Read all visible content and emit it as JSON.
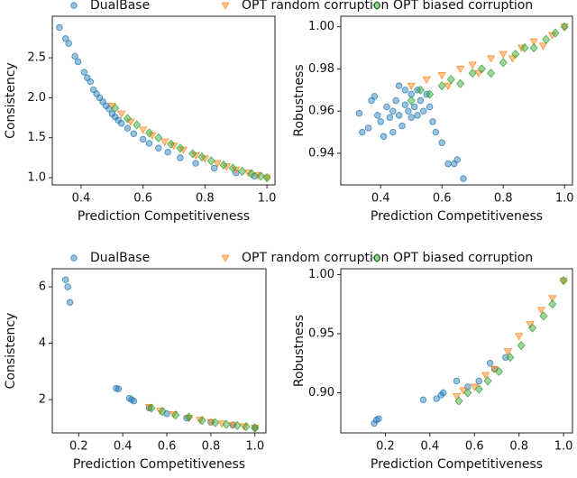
{
  "chart_data": [
    {
      "type": "scatter",
      "xlabel": "Prediction Competitiveness",
      "ylabel": "Consistency",
      "xlim": [
        0.307,
        1.026
      ],
      "ylim": [
        0.91,
        3.02
      ],
      "xticks": [
        0.4,
        0.6,
        0.8,
        {
          "value": 1.0,
          "label": "1.0"
        }
      ],
      "yticks": [
        {
          "value": 1.0,
          "label": "1.0"
        },
        1.5,
        {
          "value": 2.0,
          "label": "2.0"
        },
        2.5
      ],
      "series": [
        {
          "name": "DualBase",
          "color": "#1f77b4",
          "marker": "circle",
          "x": [
            0.33,
            0.35,
            0.36,
            0.38,
            0.39,
            0.41,
            0.42,
            0.43,
            0.44,
            0.45,
            0.46,
            0.47,
            0.48,
            0.49,
            0.5,
            0.51,
            0.52,
            0.53,
            0.55,
            0.57,
            0.6,
            0.62,
            0.65,
            0.68,
            0.72,
            0.77,
            0.83,
            0.9,
            0.96
          ],
          "values": [
            2.88,
            2.74,
            2.68,
            2.52,
            2.45,
            2.32,
            2.25,
            2.2,
            2.1,
            2.05,
            2.0,
            1.95,
            1.9,
            1.86,
            1.8,
            1.76,
            1.72,
            1.68,
            1.62,
            1.55,
            1.48,
            1.43,
            1.37,
            1.32,
            1.25,
            1.18,
            1.12,
            1.06,
            1.02
          ]
        },
        {
          "name": "OPT random corruption",
          "color": "#ff7f0e",
          "marker": "triangle",
          "x": [
            0.5,
            0.53,
            0.56,
            0.6,
            0.63,
            0.67,
            0.7,
            0.73,
            0.77,
            0.8,
            0.84,
            0.87,
            0.9,
            0.94,
            0.97,
            1.0
          ],
          "values": [
            1.9,
            1.8,
            1.7,
            1.6,
            1.53,
            1.45,
            1.4,
            1.35,
            1.28,
            1.24,
            1.18,
            1.14,
            1.1,
            1.06,
            1.03,
            1.0
          ]
        },
        {
          "name": "OPT biased corruption",
          "color": "#2ca02c",
          "marker": "diamond",
          "x": [
            0.51,
            0.55,
            0.58,
            0.62,
            0.65,
            0.69,
            0.72,
            0.76,
            0.79,
            0.82,
            0.86,
            0.89,
            0.92,
            0.95,
            0.98,
            1.0
          ],
          "values": [
            1.87,
            1.74,
            1.66,
            1.56,
            1.5,
            1.42,
            1.37,
            1.3,
            1.26,
            1.21,
            1.16,
            1.12,
            1.08,
            1.05,
            1.02,
            1.0
          ]
        }
      ]
    },
    {
      "type": "scatter",
      "xlabel": "Prediction Competitiveness",
      "ylabel": "Robustness",
      "xlim": [
        0.27,
        1.026
      ],
      "ylim": [
        0.925,
        1.005
      ],
      "xticks": [
        0.4,
        0.6,
        0.8,
        {
          "value": 1.0,
          "label": "1.0"
        }
      ],
      "yticks": [
        0.94,
        0.96,
        0.98,
        {
          "value": 1.0,
          "label": "1.00"
        }
      ],
      "series": [
        {
          "color": "#1f77b4",
          "marker": "circle",
          "x": [
            0.33,
            0.34,
            0.36,
            0.37,
            0.38,
            0.39,
            0.4,
            0.41,
            0.42,
            0.43,
            0.44,
            0.45,
            0.46,
            0.47,
            0.48,
            0.49,
            0.5,
            0.5,
            0.51,
            0.52,
            0.52,
            0.53,
            0.54,
            0.55,
            0.56,
            0.57,
            0.58,
            0.6,
            0.62,
            0.64,
            0.65,
            0.67,
            0.46,
            0.48,
            0.44
          ],
          "values": [
            0.959,
            0.95,
            0.952,
            0.965,
            0.967,
            0.958,
            0.955,
            0.948,
            0.962,
            0.957,
            0.96,
            0.965,
            0.958,
            0.953,
            0.963,
            0.96,
            0.968,
            0.957,
            0.962,
            0.97,
            0.958,
            0.965,
            0.96,
            0.968,
            0.962,
            0.955,
            0.95,
            0.945,
            0.935,
            0.935,
            0.937,
            0.928,
            0.972,
            0.97,
            0.95
          ]
        },
        {
          "color": "#ff7f0e",
          "marker": "triangle",
          "x": [
            0.5,
            0.55,
            0.6,
            0.62,
            0.66,
            0.7,
            0.72,
            0.76,
            0.8,
            0.83,
            0.86,
            0.9,
            0.93,
            0.96,
            1.0
          ],
          "values": [
            0.972,
            0.975,
            0.977,
            0.972,
            0.98,
            0.982,
            0.978,
            0.985,
            0.987,
            0.985,
            0.99,
            0.993,
            0.991,
            0.996,
            1.0
          ]
        },
        {
          "color": "#2ca02c",
          "marker": "diamond",
          "x": [
            0.5,
            0.53,
            0.56,
            0.6,
            0.63,
            0.66,
            0.7,
            0.73,
            0.76,
            0.8,
            0.84,
            0.87,
            0.9,
            0.94,
            0.97,
            1.0
          ],
          "values": [
            0.965,
            0.97,
            0.968,
            0.972,
            0.975,
            0.973,
            0.978,
            0.98,
            0.978,
            0.983,
            0.987,
            0.99,
            0.99,
            0.994,
            0.997,
            1.0
          ]
        }
      ]
    },
    {
      "type": "scatter",
      "xlabel": "Prediction Competitiveness",
      "ylabel": "Consistency",
      "xlim": [
        0.08,
        1.05
      ],
      "ylim": [
        0.82,
        6.64
      ],
      "xticks": [
        0.2,
        0.4,
        0.6,
        0.8,
        {
          "value": 1.0,
          "label": "1.0"
        }
      ],
      "yticks": [
        2,
        4,
        6
      ],
      "series": [
        {
          "name": "DualBase",
          "color": "#1f77b4",
          "marker": "circle",
          "x": [
            0.14,
            0.15,
            0.16,
            0.37,
            0.38,
            0.43,
            0.44,
            0.45,
            0.52,
            0.6,
            0.69,
            0.8,
            0.9,
            1.0
          ],
          "values": [
            6.25,
            6.0,
            5.45,
            2.4,
            2.38,
            2.05,
            2.0,
            1.95,
            1.7,
            1.5,
            1.35,
            1.2,
            1.1,
            1.0
          ]
        },
        {
          "name": "OPT random corruption",
          "color": "#ff7f0e",
          "marker": "triangle",
          "x": [
            0.52,
            0.57,
            0.63,
            0.7,
            0.75,
            0.8,
            0.85,
            0.9,
            0.95,
            1.0
          ],
          "values": [
            1.73,
            1.6,
            1.48,
            1.35,
            1.28,
            1.2,
            1.15,
            1.1,
            1.05,
            1.0
          ]
        },
        {
          "name": "OPT biased corruption",
          "color": "#2ca02c",
          "marker": "diamond",
          "x": [
            0.53,
            0.58,
            0.64,
            0.7,
            0.76,
            0.82,
            0.87,
            0.92,
            0.96,
            1.0
          ],
          "values": [
            1.7,
            1.58,
            1.45,
            1.38,
            1.26,
            1.18,
            1.12,
            1.08,
            1.04,
            1.0
          ]
        }
      ]
    },
    {
      "type": "scatter",
      "xlabel": "Prediction Competitiveness",
      "ylabel": "Robustness",
      "xlim": [
        0.0,
        1.04
      ],
      "ylim": [
        0.866,
        1.005
      ],
      "xticks": [
        0.2,
        0.4,
        0.6,
        0.8,
        {
          "value": 1.0,
          "label": "1.0"
        }
      ],
      "yticks": [
        {
          "value": 0.9,
          "label": "0.90"
        },
        0.95,
        {
          "value": 1.0,
          "label": "1.00"
        }
      ],
      "series": [
        {
          "color": "#1f77b4",
          "marker": "circle",
          "x": [
            0.15,
            0.16,
            0.17,
            0.37,
            0.43,
            0.45,
            0.46,
            0.52,
            0.57,
            0.62,
            0.67,
            0.69,
            0.74
          ],
          "values": [
            0.874,
            0.877,
            0.878,
            0.894,
            0.895,
            0.898,
            0.9,
            0.91,
            0.905,
            0.91,
            0.925,
            0.92,
            0.93
          ]
        },
        {
          "color": "#ff7f0e",
          "marker": "triangle",
          "x": [
            0.52,
            0.55,
            0.6,
            0.65,
            0.69,
            0.75,
            0.8,
            0.85,
            0.9,
            0.95,
            1.0
          ],
          "values": [
            0.897,
            0.902,
            0.905,
            0.915,
            0.92,
            0.935,
            0.948,
            0.958,
            0.97,
            0.98,
            0.995
          ]
        },
        {
          "color": "#2ca02c",
          "marker": "diamond",
          "x": [
            0.53,
            0.57,
            0.62,
            0.66,
            0.71,
            0.76,
            0.81,
            0.86,
            0.91,
            0.95,
            1.0
          ],
          "values": [
            0.893,
            0.9,
            0.903,
            0.91,
            0.918,
            0.93,
            0.94,
            0.955,
            0.965,
            0.975,
            0.995
          ]
        }
      ]
    }
  ]
}
